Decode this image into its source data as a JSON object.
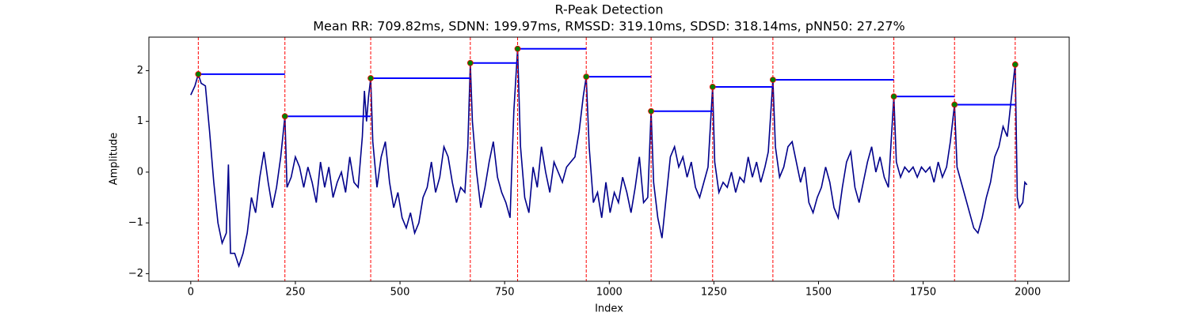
{
  "chart_data": {
    "type": "line",
    "title": "R-Peak Detection",
    "subtitle": "Mean RR: 709.82ms, SDNN: 199.97ms, RMSSD: 319.10ms, SDSD: 318.14ms, pNN50: 27.27%",
    "x_label": "Index",
    "y_label": "Amplitude",
    "xlim": [
      -100,
      2099
    ],
    "ylim": [
      -2.15,
      2.66
    ],
    "xticks": [
      0,
      250,
      500,
      750,
      1000,
      1250,
      1500,
      1750,
      2000
    ],
    "yticks": [
      {
        "value": -2,
        "label": "−2"
      },
      {
        "value": -1,
        "label": "−1"
      },
      0,
      1,
      2
    ],
    "x": [
      0,
      10,
      18,
      25,
      35,
      45,
      55,
      65,
      75,
      85,
      90,
      95,
      105,
      115,
      125,
      135,
      145,
      155,
      165,
      175,
      185,
      195,
      205,
      215,
      225,
      230,
      240,
      250,
      260,
      270,
      280,
      290,
      300,
      310,
      320,
      330,
      340,
      350,
      360,
      370,
      380,
      390,
      400,
      410,
      415,
      420,
      425,
      430,
      435,
      445,
      455,
      465,
      475,
      485,
      495,
      505,
      515,
      525,
      535,
      545,
      555,
      565,
      575,
      585,
      595,
      605,
      615,
      625,
      635,
      645,
      655,
      662,
      668,
      673,
      683,
      693,
      703,
      713,
      723,
      733,
      743,
      753,
      763,
      772,
      781,
      788,
      798,
      808,
      818,
      828,
      838,
      848,
      858,
      868,
      878,
      888,
      898,
      908,
      918,
      928,
      938,
      945,
      952,
      962,
      972,
      982,
      992,
      1002,
      1012,
      1022,
      1032,
      1042,
      1052,
      1062,
      1072,
      1082,
      1092,
      1100,
      1106,
      1116,
      1126,
      1136,
      1146,
      1156,
      1166,
      1176,
      1186,
      1196,
      1206,
      1216,
      1226,
      1236,
      1247,
      1252,
      1262,
      1272,
      1282,
      1292,
      1302,
      1312,
      1322,
      1332,
      1342,
      1352,
      1362,
      1372,
      1380,
      1391,
      1397,
      1407,
      1417,
      1427,
      1437,
      1447,
      1457,
      1467,
      1477,
      1487,
      1497,
      1507,
      1517,
      1527,
      1537,
      1547,
      1557,
      1567,
      1577,
      1587,
      1597,
      1607,
      1617,
      1627,
      1637,
      1647,
      1657,
      1667,
      1680,
      1686,
      1696,
      1706,
      1716,
      1726,
      1736,
      1746,
      1756,
      1766,
      1776,
      1786,
      1796,
      1806,
      1815,
      1825,
      1831,
      1841,
      1851,
      1861,
      1871,
      1881,
      1891,
      1901,
      1911,
      1921,
      1931,
      1941,
      1951,
      1960,
      1970,
      1975,
      1980,
      1988,
      1993,
      1998
    ],
    "series": [
      {
        "color": "#00008b",
        "values": [
          1.52,
          1.7,
          1.93,
          1.75,
          1.7,
          0.8,
          -0.2,
          -1.0,
          -1.4,
          -1.2,
          0.15,
          -1.6,
          -1.6,
          -1.85,
          -1.6,
          -1.2,
          -0.5,
          -0.8,
          -0.1,
          0.4,
          -0.2,
          -0.7,
          -0.3,
          0.3,
          1.1,
          -0.3,
          -0.1,
          0.3,
          0.1,
          -0.3,
          0.1,
          -0.2,
          -0.6,
          0.2,
          -0.3,
          0.1,
          -0.5,
          -0.2,
          0.0,
          -0.4,
          0.3,
          -0.2,
          -0.3,
          0.7,
          1.6,
          1.0,
          1.5,
          1.85,
          0.6,
          -0.3,
          0.3,
          0.6,
          -0.2,
          -0.7,
          -0.4,
          -0.9,
          -1.1,
          -0.8,
          -1.2,
          -1.0,
          -0.5,
          -0.3,
          0.2,
          -0.4,
          -0.1,
          0.5,
          0.3,
          -0.2,
          -0.6,
          -0.3,
          -0.4,
          0.5,
          2.15,
          1.0,
          0.0,
          -0.7,
          -0.3,
          0.2,
          0.6,
          -0.1,
          -0.4,
          -0.6,
          -0.9,
          1.2,
          2.43,
          0.5,
          -0.5,
          -0.8,
          0.1,
          -0.3,
          0.5,
          0.0,
          -0.4,
          0.2,
          0.0,
          -0.2,
          0.1,
          0.2,
          0.3,
          0.8,
          1.5,
          1.88,
          0.5,
          -0.6,
          -0.4,
          -0.9,
          -0.2,
          -0.8,
          -0.4,
          -0.6,
          -0.1,
          -0.4,
          -0.8,
          -0.3,
          0.3,
          -0.6,
          -0.5,
          1.2,
          -0.2,
          -0.9,
          -1.3,
          -0.5,
          0.3,
          0.5,
          0.1,
          0.3,
          -0.1,
          0.2,
          -0.3,
          -0.5,
          -0.2,
          0.1,
          1.68,
          0.2,
          -0.4,
          -0.2,
          -0.3,
          0.0,
          -0.4,
          -0.1,
          -0.2,
          0.3,
          -0.1,
          0.2,
          -0.2,
          0.1,
          0.4,
          1.82,
          0.5,
          -0.1,
          0.1,
          0.5,
          0.6,
          0.2,
          -0.2,
          0.1,
          -0.6,
          -0.8,
          -0.5,
          -0.3,
          0.1,
          -0.2,
          -0.7,
          -0.9,
          -0.3,
          0.2,
          0.4,
          -0.3,
          -0.6,
          -0.2,
          0.2,
          0.5,
          0.0,
          0.3,
          -0.1,
          -0.3,
          1.49,
          0.2,
          -0.1,
          0.1,
          0.0,
          0.1,
          -0.1,
          0.1,
          0.0,
          0.1,
          -0.2,
          0.2,
          -0.1,
          0.1,
          0.6,
          1.33,
          0.1,
          -0.2,
          -0.5,
          -0.8,
          -1.1,
          -1.2,
          -0.9,
          -0.5,
          -0.2,
          0.3,
          0.5,
          0.9,
          0.7,
          1.4,
          2.12,
          -0.5,
          -0.7,
          -0.6,
          -0.2,
          -0.25
        ]
      }
    ],
    "peaks": {
      "color": "green",
      "edge_color": "red",
      "x": [
        18,
        225,
        430,
        668,
        781,
        945,
        1100,
        1247,
        1391,
        1680,
        1825,
        1970
      ],
      "values": [
        1.93,
        1.1,
        1.85,
        2.15,
        2.43,
        1.88,
        1.2,
        1.68,
        1.82,
        1.49,
        1.33,
        2.12
      ]
    },
    "peak_line_color": "red",
    "rr_line_color": "blue"
  }
}
